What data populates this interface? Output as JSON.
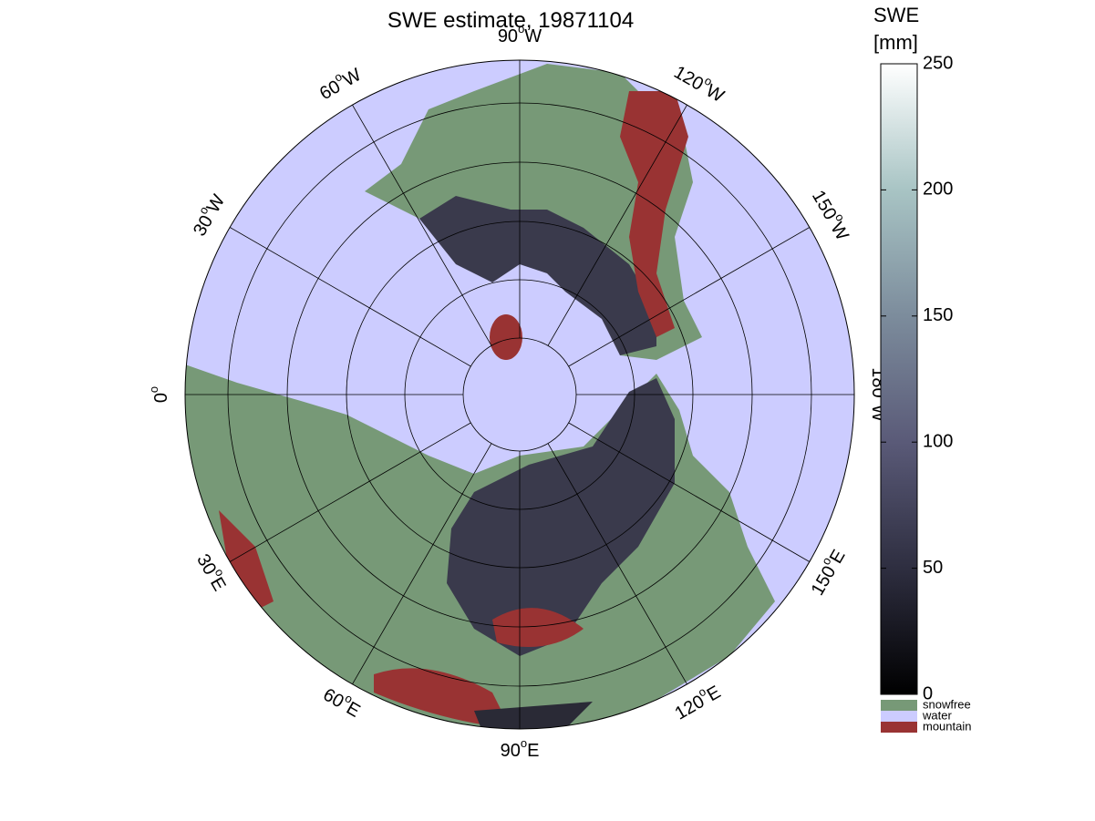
{
  "title": "SWE estimate, 19871104",
  "meridian_labels": [
    {
      "number": "90",
      "degree": "o",
      "hemisphere": "W"
    },
    {
      "number": "120",
      "degree": "o",
      "hemisphere": "W"
    },
    {
      "number": "150",
      "degree": "o",
      "hemisphere": "W"
    },
    {
      "number": "180",
      "degree": "o",
      "hemisphere": "W"
    },
    {
      "number": "150",
      "degree": "o",
      "hemisphere": "E"
    },
    {
      "number": "120",
      "degree": "o",
      "hemisphere": "E"
    },
    {
      "number": "90",
      "degree": "o",
      "hemisphere": "E"
    },
    {
      "number": "60",
      "degree": "o",
      "hemisphere": "E"
    },
    {
      "number": "30",
      "degree": "o",
      "hemisphere": "E"
    },
    {
      "number": "0",
      "degree": "o",
      "hemisphere": ""
    },
    {
      "number": "30",
      "degree": "o",
      "hemisphere": "W"
    },
    {
      "number": "60",
      "degree": "o",
      "hemisphere": "W"
    }
  ],
  "colorbar": {
    "title": "SWE",
    "unit": "[mm]",
    "lim": [
      0,
      250
    ],
    "ticks": [
      0,
      50,
      100,
      150,
      200,
      250
    ]
  },
  "legend": [
    {
      "label": "snowfree",
      "color": "#779977"
    },
    {
      "label": "water",
      "color": "#ccccff"
    },
    {
      "label": "mountain",
      "color": "#993333"
    }
  ]
}
